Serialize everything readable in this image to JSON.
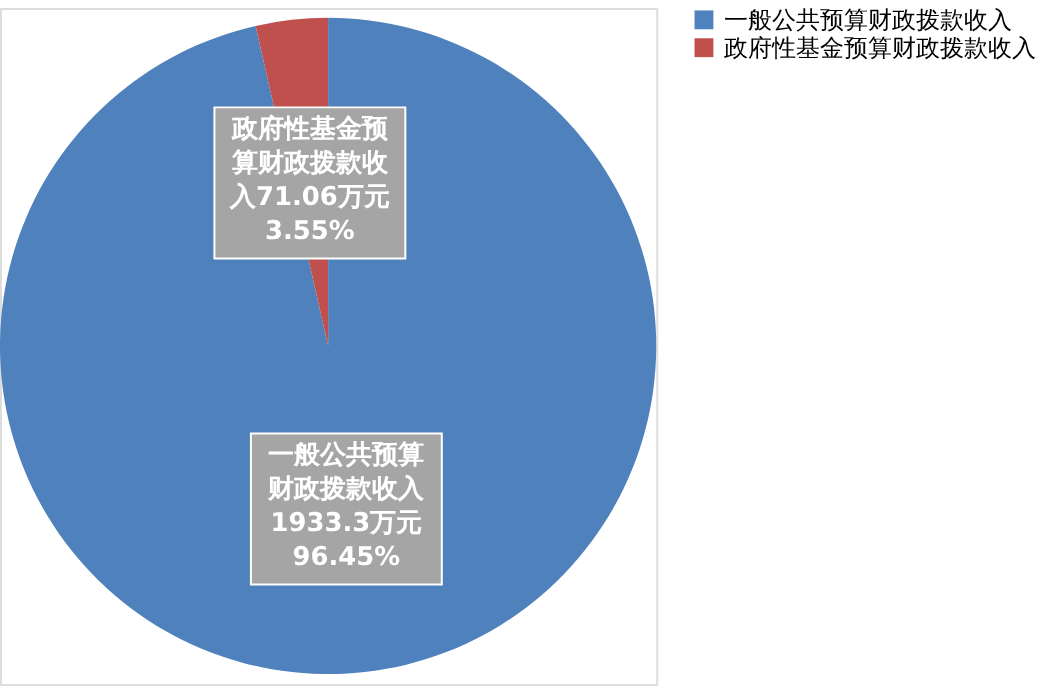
{
  "chart_data": {
    "type": "pie",
    "categories": [
      "一般公共预算财政拨款收入",
      "政府性基金预算财政拨款收入"
    ],
    "values": [
      1933.3,
      71.06
    ],
    "colors": [
      "#4f81bd",
      "#c0504d"
    ],
    "value_labels": [
      "一般公共预算财政拨款收入\n1933.3万元\n96.45%",
      "政府性基金预算财政拨款收入71.06万元\n3.55%"
    ],
    "legend": "right"
  }
}
